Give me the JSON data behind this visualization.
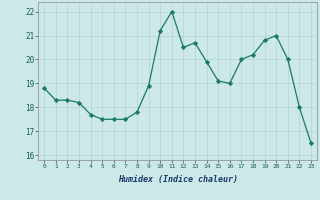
{
  "x": [
    0,
    1,
    2,
    3,
    4,
    5,
    6,
    7,
    8,
    9,
    10,
    11,
    12,
    13,
    14,
    15,
    16,
    17,
    18,
    19,
    20,
    21,
    22,
    23
  ],
  "y": [
    18.8,
    18.3,
    18.3,
    18.2,
    17.7,
    17.5,
    17.5,
    17.5,
    17.8,
    18.9,
    21.2,
    22.0,
    20.5,
    20.7,
    19.9,
    19.1,
    19.0,
    20.0,
    20.2,
    20.8,
    21.0,
    20.0,
    18.0,
    16.5
  ],
  "line_color": "#1a7a6a",
  "marker": "D",
  "marker_size": 2.2,
  "bg_color": "#cce8e8",
  "grid_color": "#b8d8d8",
  "xlabel": "Humidex (Indice chaleur)",
  "ylim": [
    15.8,
    22.4
  ],
  "yticks": [
    16,
    17,
    18,
    19,
    20,
    21,
    22
  ],
  "xlim": [
    -0.5,
    23.5
  ],
  "xticks": [
    0,
    1,
    2,
    3,
    4,
    5,
    6,
    7,
    8,
    9,
    10,
    11,
    12,
    13,
    14,
    15,
    16,
    17,
    18,
    19,
    20,
    21,
    22,
    23
  ],
  "tick_color": "#1a5a5a",
  "label_color": "#1a3a6a"
}
